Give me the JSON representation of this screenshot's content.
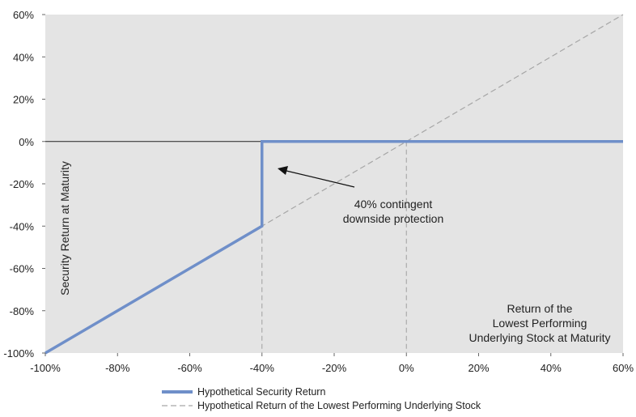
{
  "chart_data": {
    "type": "line",
    "xlim": [
      -100,
      60
    ],
    "ylim": [
      -100,
      60
    ],
    "x_ticks": [
      -100,
      -80,
      -60,
      -40,
      -20,
      0,
      20,
      40,
      60
    ],
    "y_ticks": [
      -100,
      -80,
      -60,
      -40,
      -20,
      0,
      20,
      40,
      60
    ],
    "x_tick_labels": [
      "-100%",
      "-80%",
      "-60%",
      "-40%",
      "-20%",
      "0%",
      "20%",
      "40%",
      "60%"
    ],
    "y_tick_labels": [
      "-100%",
      "-80%",
      "-60%",
      "-40%",
      "-20%",
      "0%",
      "20%",
      "40%",
      "60%"
    ],
    "ylabel": "Security Return at Maturity",
    "xlabel_lines": [
      "Return of the",
      "Lowest Performing",
      "Underlying Stock at Maturity"
    ],
    "annotation_lines": [
      "40% contingent",
      "downside protection"
    ],
    "vertical_reference_lines": [
      -40,
      0
    ],
    "series": [
      {
        "name": "Hypothetical Security Return",
        "style": "solid",
        "color": "#6f8fc9",
        "points": [
          [
            -100,
            -100
          ],
          [
            -40,
            -40
          ],
          [
            -40,
            0
          ],
          [
            60,
            0
          ]
        ]
      },
      {
        "name": "Hypothetical Return of the Lowest Performing Underlying Stock",
        "style": "dashed",
        "color": "#a6a6a6",
        "points": [
          [
            -100,
            -100
          ],
          [
            60,
            60
          ]
        ]
      }
    ],
    "plot_background": "#e4e4e4",
    "legend_position": "bottom"
  }
}
